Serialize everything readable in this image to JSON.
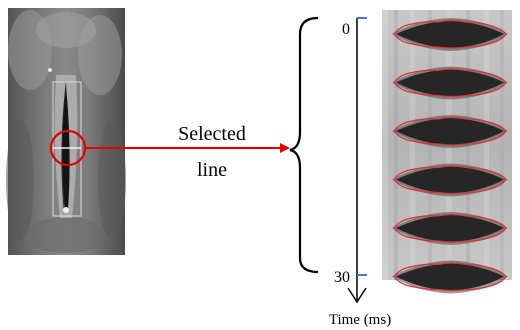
{
  "annotation": {
    "selected_line": [
      "Selected",
      "line"
    ]
  },
  "time_axis": {
    "start_label": "0",
    "end_label": "30",
    "axis_label": "Time (ms)",
    "range_ms": [
      0,
      30
    ]
  },
  "kymogram": {
    "frame_count": 6
  },
  "colors": {
    "annotation_red": "#e00000",
    "contour_red": "#e0303a",
    "tick_blue": "#4a78c8",
    "roi_outline": "#dddddd"
  }
}
